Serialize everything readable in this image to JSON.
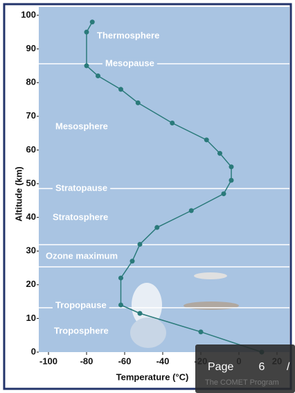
{
  "chart_data": {
    "type": "line",
    "xlabel": "Temperature (°C)",
    "ylabel": "Altitude (km)",
    "series": [
      {
        "name": null,
        "color": "#2a7a7a",
        "x": [
          12,
          -20,
          -52,
          -62,
          -62,
          -56,
          -52,
          -43,
          -25,
          -8,
          -4,
          -4,
          -10,
          -17,
          -35,
          -53,
          -62,
          -74,
          -80,
          -80,
          -77
        ],
        "values": [
          0,
          6,
          11.5,
          14,
          22,
          27,
          32,
          37,
          42,
          47,
          51,
          55,
          59,
          63,
          68,
          74,
          78,
          82,
          85,
          95,
          98
        ]
      }
    ],
    "xlim": [
      -100,
      20
    ],
    "xticks": [
      -100,
      -80,
      -60,
      -40,
      -20,
      0,
      20
    ],
    "ylim": [
      0,
      100
    ],
    "yticks": [
      0,
      10,
      20,
      30,
      40,
      50,
      60,
      70,
      80,
      90,
      100
    ],
    "annotations": [
      "Thermosphere",
      "Mesopause",
      "Mesosphere",
      "Stratopause",
      "Stratosphere",
      "Ozone maximum",
      "Tropopause",
      "Troposphere"
    ]
  },
  "pager": {
    "label": "Page",
    "number": "6",
    "separator": "/",
    "credit": "The COMET Program"
  }
}
